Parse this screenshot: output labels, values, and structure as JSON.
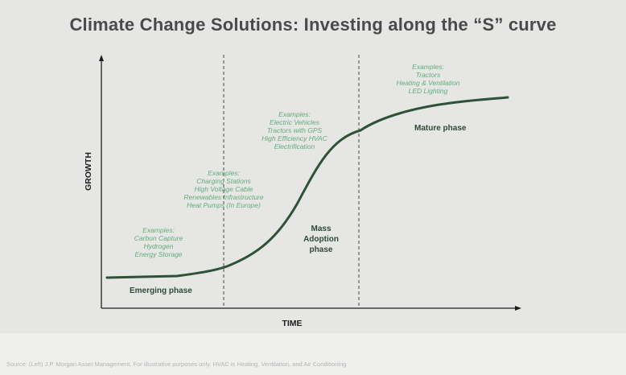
{
  "title": "Climate Change Solutions: Investing along the “S” curve",
  "axes": {
    "y_label": "GROWTH",
    "x_label": "TIME"
  },
  "phases": {
    "emerging": "Emerging phase",
    "mass_adoption": [
      "Mass",
      "Adoption",
      "phase"
    ],
    "mature": "Mature phase"
  },
  "examples": {
    "emerging": {
      "heading": "Examples:",
      "items": [
        "Carbon Capture",
        "Hydrogen",
        "Energy Storage"
      ]
    },
    "early_growth": {
      "heading": "Examples:",
      "items": [
        "Charging Stations",
        "High Voltage Cable",
        "Renewables Infrastructure",
        "Heat Pumps (In Europe)"
      ]
    },
    "mass_adoption": {
      "heading": "Examples:",
      "items": [
        "Electric Vehicles",
        "Tractors with GPS",
        "High Efficiency HVAC",
        "Electrification"
      ]
    },
    "mature": {
      "heading": "Examples:",
      "items": [
        "Tractors",
        "Heating & Ventilation",
        "LED Lighting"
      ]
    }
  },
  "source": "Source: (Left) J.P. Morgan Asset Management. For illustrative purposes only. HVAC is Heating, Ventilation, and Air Conditioning",
  "colors": {
    "curve": "#2e5236",
    "examples_text": "#62ad7b",
    "phase_text": "#2f4a36",
    "axis": "#1e1e1e"
  }
}
